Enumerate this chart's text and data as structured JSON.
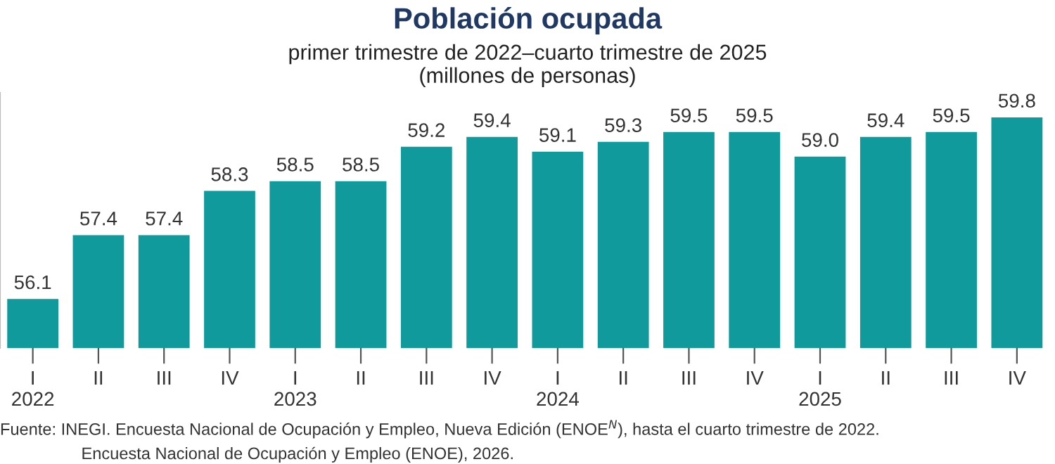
{
  "chart_data": {
    "type": "bar",
    "title": "Población ocupada",
    "subtitle": "primer trimestre de 2022–cuarto trimestre de 2025\n(millones de personas)",
    "categories": [
      "I\n2022",
      "II",
      "III",
      "IV",
      "I\n2023",
      "II",
      "III",
      "IV",
      "I\n2024",
      "II",
      "III",
      "IV",
      "I\n2025",
      "II",
      "III",
      "IV"
    ],
    "values": [
      56.1,
      57.4,
      57.4,
      58.3,
      58.5,
      58.5,
      59.2,
      59.4,
      59.1,
      59.3,
      59.5,
      59.5,
      59.0,
      59.4,
      59.5,
      59.8
    ],
    "value_labels": [
      "56.1",
      "57.4",
      "57.4",
      "58.3",
      "58.5",
      "58.5",
      "59.2",
      "59.4",
      "59.1",
      "59.3",
      "59.5",
      "59.5",
      "59.0",
      "59.4",
      "59.5",
      "59.8"
    ],
    "color": "#109a9b",
    "ylim": [
      55.1,
      60.3
    ],
    "tick_labels": "x",
    "grid": false,
    "legend": false,
    "annotations": [
      "Fuente: INEGI. Encuesta Nacional de Ocupación y Empleo, Nueva Edición (ENOE$^{N}$), hasta el cuarto trimestre de 2022.",
      "Encuesta Nacional de Ocupación y Empleo (ENOE), 2026."
    ]
  }
}
